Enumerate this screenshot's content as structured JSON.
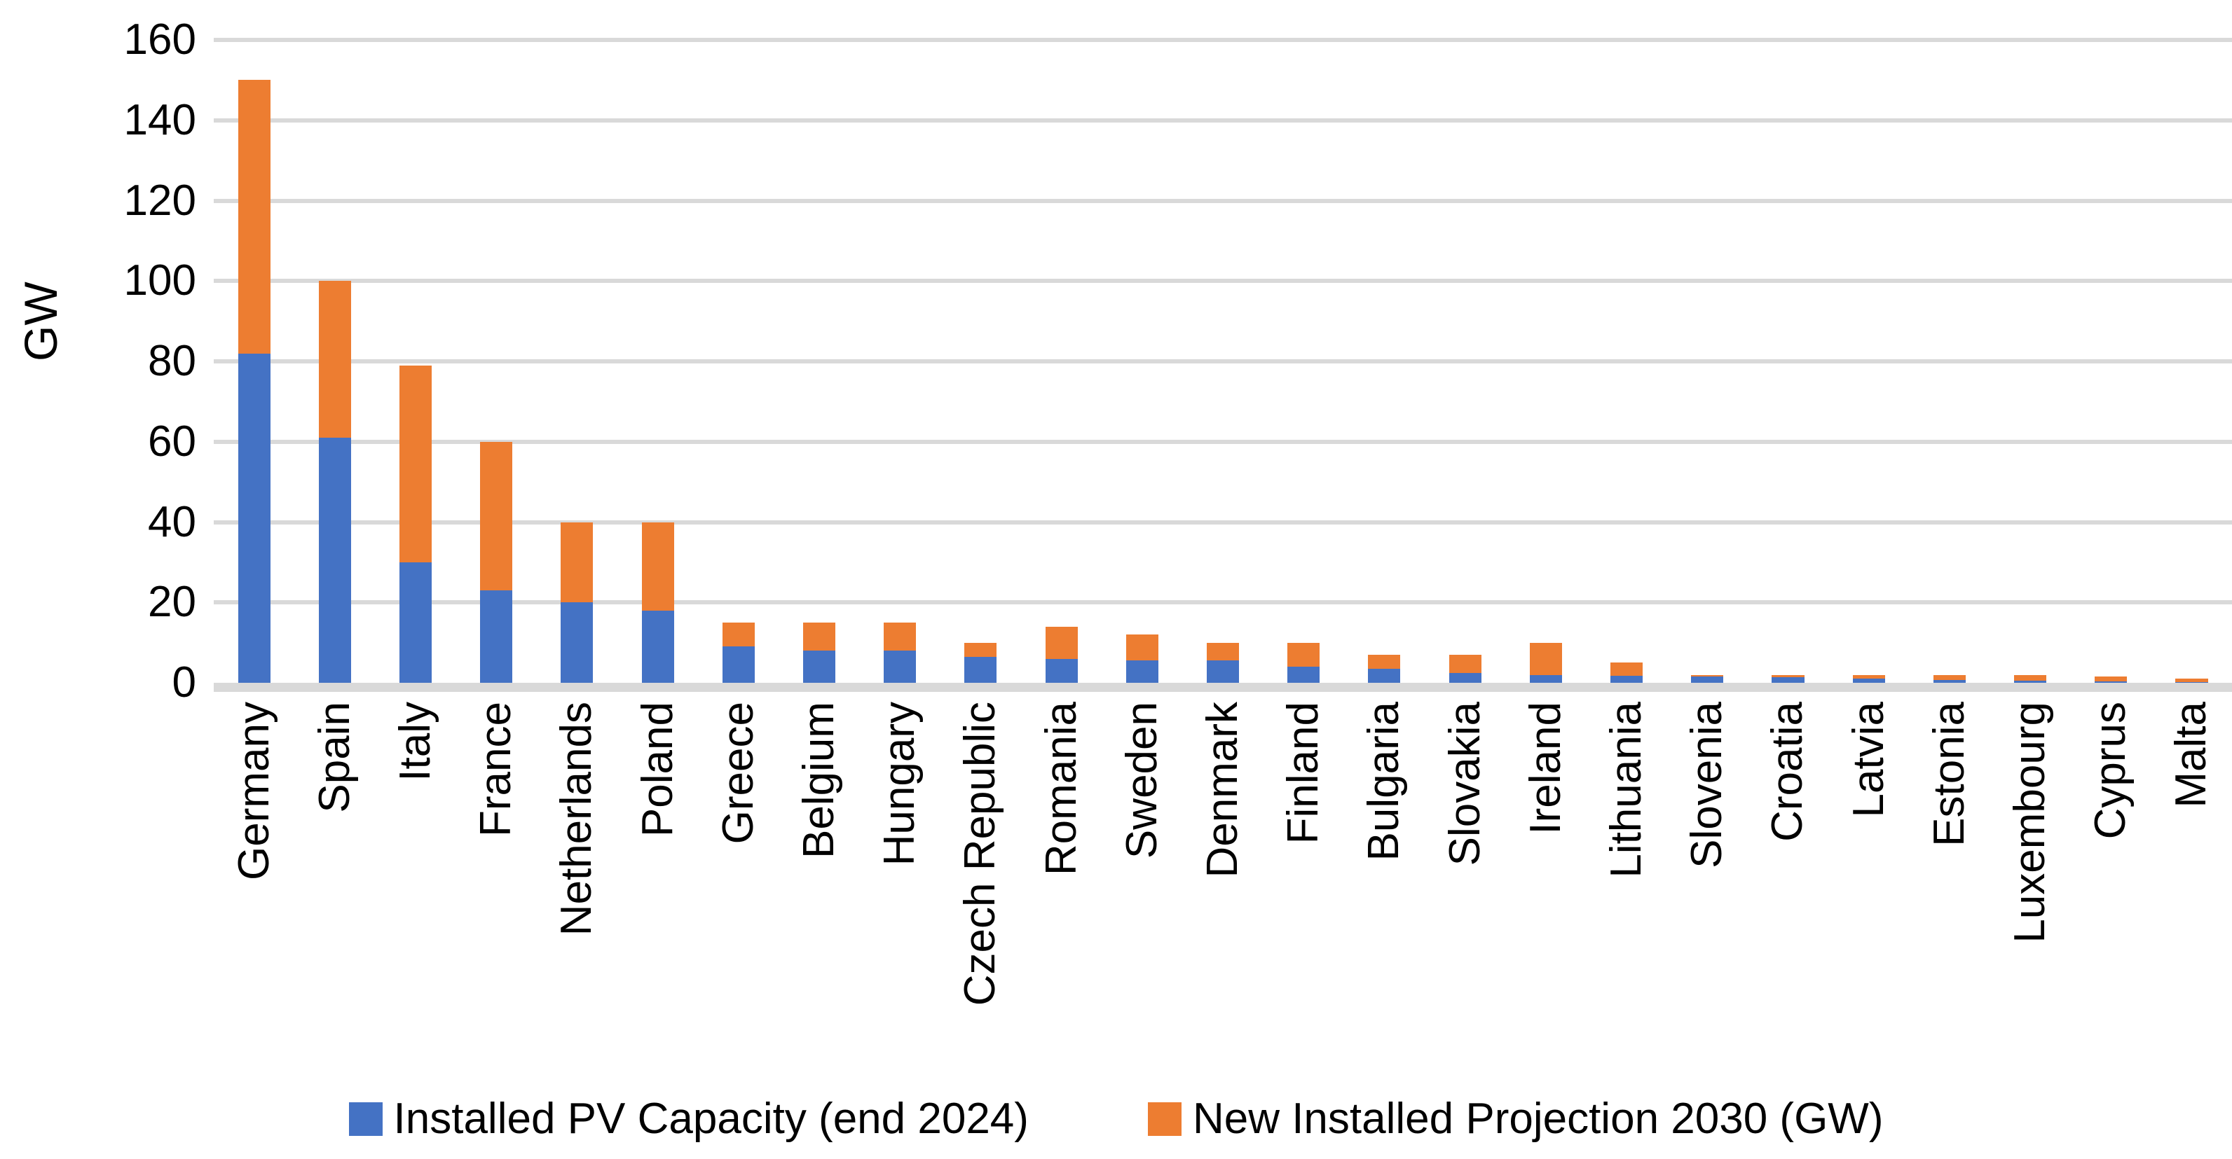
{
  "chart_data": {
    "type": "bar",
    "stacked": true,
    "title": "",
    "ylabel": "GW",
    "xlabel": "",
    "ylim": [
      0,
      160
    ],
    "ytick_step": 20,
    "grid": true,
    "legend_position": "bottom",
    "categories": [
      "Germany",
      "Spain",
      "Italy",
      "France",
      "Netherlands",
      "Poland",
      "Greece",
      "Belgium",
      "Hungary",
      "Czech Republic",
      "Romania",
      "Sweden",
      "Denmark",
      "Finland",
      "Bulgaria",
      "Slovakia",
      "Ireland",
      "Lithuania",
      "Slovenia",
      "Croatia",
      "Latvia",
      "Estonia",
      "Luxembourg",
      "Cyprus",
      "Malta"
    ],
    "series": [
      {
        "name": "Installed PV Capacity (end 2024)",
        "color": "#4472C4",
        "values": [
          82,
          61,
          30,
          23,
          20,
          18,
          9,
          8,
          8,
          6.5,
          6,
          5.5,
          5.5,
          4,
          3.5,
          2.5,
          2,
          1.7,
          1.6,
          1.4,
          1,
          0.7,
          0.6,
          0.3,
          0.15
        ]
      },
      {
        "name": "New Installed Projection 2030 (GW)",
        "color": "#ED7D31",
        "values": [
          68,
          39,
          49,
          37,
          20,
          22,
          6,
          7,
          7,
          3.5,
          8,
          6.5,
          4.5,
          6,
          3.5,
          4.5,
          8,
          3.3,
          0.4,
          0.6,
          1,
          1.3,
          1.4,
          1.2,
          0.85
        ]
      }
    ]
  },
  "colors": {
    "gridline": "#D9D9D9",
    "axis_line": "#D9D9D9",
    "text": "#000000",
    "background": "#FFFFFF"
  }
}
